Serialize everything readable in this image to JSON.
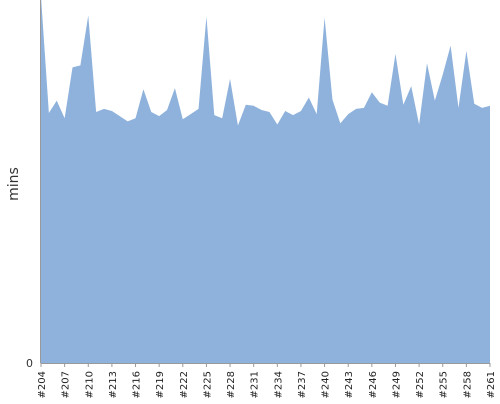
{
  "chart_data": {
    "type": "area",
    "title": "",
    "xlabel": "",
    "ylabel": "mins",
    "ylim": [
      0,
      35
    ],
    "y_ticks": [
      "0"
    ],
    "grid": false,
    "legend": "none",
    "color": "#8eb2dc",
    "categories": [
      "#204",
      "#205",
      "#206",
      "#207",
      "#208",
      "#209",
      "#210",
      "#211",
      "#212",
      "#213",
      "#214",
      "#215",
      "#216",
      "#217",
      "#218",
      "#219",
      "#220",
      "#221",
      "#222",
      "#223",
      "#224",
      "#225",
      "#226",
      "#227",
      "#228",
      "#229",
      "#230",
      "#231",
      "#232",
      "#233",
      "#234",
      "#235",
      "#236",
      "#237",
      "#238",
      "#239",
      "#240",
      "#241",
      "#242",
      "#243",
      "#244",
      "#245",
      "#246",
      "#247",
      "#248",
      "#249",
      "#250",
      "#251",
      "#252",
      "#253",
      "#254",
      "#255",
      "#256",
      "#257",
      "#258",
      "#259",
      "#260",
      "#261"
    ],
    "x_tick_labels": [
      "#204",
      "#207",
      "#210",
      "#213",
      "#216",
      "#219",
      "#222",
      "#225",
      "#228",
      "#231",
      "#234",
      "#237",
      "#240",
      "#243",
      "#246",
      "#249",
      "#252",
      "#255",
      "#258",
      "#261"
    ],
    "values": [
      35.3,
      24.1,
      25.3,
      23.6,
      28.5,
      28.7,
      33.5,
      24.2,
      24.5,
      24.3,
      23.8,
      23.3,
      23.6,
      26.4,
      24.2,
      23.8,
      24.4,
      26.5,
      23.5,
      24.0,
      24.5,
      33.4,
      23.9,
      23.6,
      27.4,
      22.9,
      24.9,
      24.8,
      24.4,
      24.2,
      23.0,
      24.3,
      23.9,
      24.3,
      25.6,
      24.0,
      33.3,
      25.4,
      23.1,
      24.0,
      24.5,
      24.6,
      26.1,
      25.1,
      24.8,
      29.8,
      24.9,
      26.7,
      23.0,
      28.9,
      25.3,
      27.8,
      30.6,
      24.6,
      30.1,
      25.0,
      24.6,
      24.8
    ]
  }
}
